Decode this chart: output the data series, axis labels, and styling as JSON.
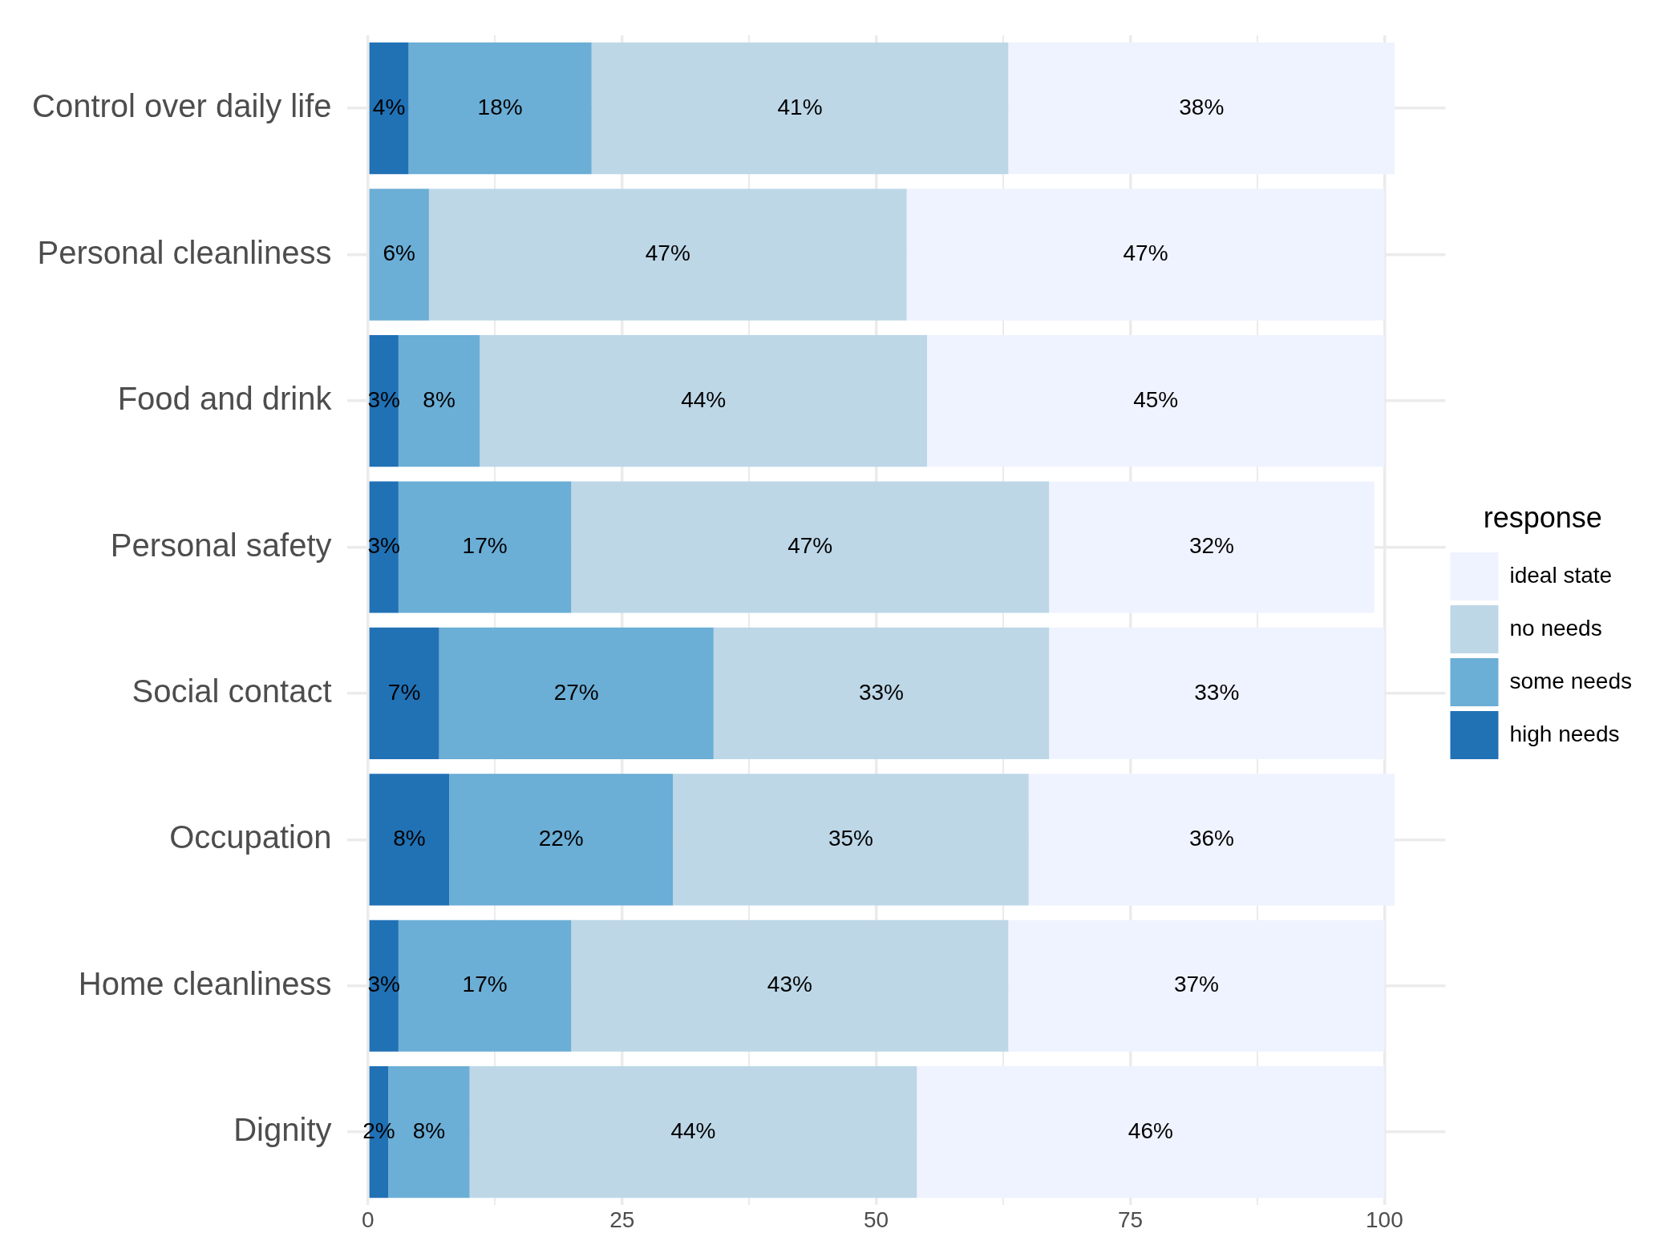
{
  "chart_data": {
    "type": "bar",
    "orientation": "horizontal",
    "stacked": true,
    "categories": [
      "Control over daily life",
      "Personal cleanliness",
      "Food and drink",
      "Personal safety",
      "Social contact",
      "Occupation",
      "Home cleanliness",
      "Dignity"
    ],
    "series": [
      {
        "name": "high needs",
        "color": "#2171b5",
        "values": [
          4,
          null,
          3,
          3,
          7,
          8,
          3,
          2
        ],
        "value_labels": [
          "4%",
          null,
          "3%",
          "3%",
          "7%",
          "8%",
          "3%",
          "2%"
        ]
      },
      {
        "name": "some needs",
        "color": "#6baed6",
        "values": [
          18,
          6,
          8,
          17,
          27,
          22,
          17,
          8
        ],
        "value_labels": [
          "18%",
          "6%",
          "8%",
          "17%",
          "27%",
          "22%",
          "17%",
          "8%"
        ]
      },
      {
        "name": "no needs",
        "color": "#bdd7e7",
        "values": [
          41,
          47,
          44,
          47,
          33,
          35,
          43,
          44
        ],
        "value_labels": [
          "41%",
          "47%",
          "44%",
          "47%",
          "33%",
          "35%",
          "43%",
          "44%"
        ]
      },
      {
        "name": "ideal state",
        "color": "#eff3ff",
        "values": [
          38,
          47,
          45,
          32,
          33,
          36,
          37,
          46
        ],
        "value_labels": [
          "38%",
          "47%",
          "45%",
          "32%",
          "33%",
          "36%",
          "37%",
          "46%"
        ]
      }
    ],
    "xlim": [
      -2,
      106
    ],
    "xticks": [
      0,
      {
        "value": 12.5,
        "label": null
      },
      25,
      {
        "value": 37.5,
        "label": null
      },
      50,
      {
        "value": 62.5,
        "label": null
      },
      75,
      {
        "value": 87.5,
        "label": null
      },
      100
    ],
    "grid": true,
    "legend": "right",
    "legend_title": "response"
  }
}
